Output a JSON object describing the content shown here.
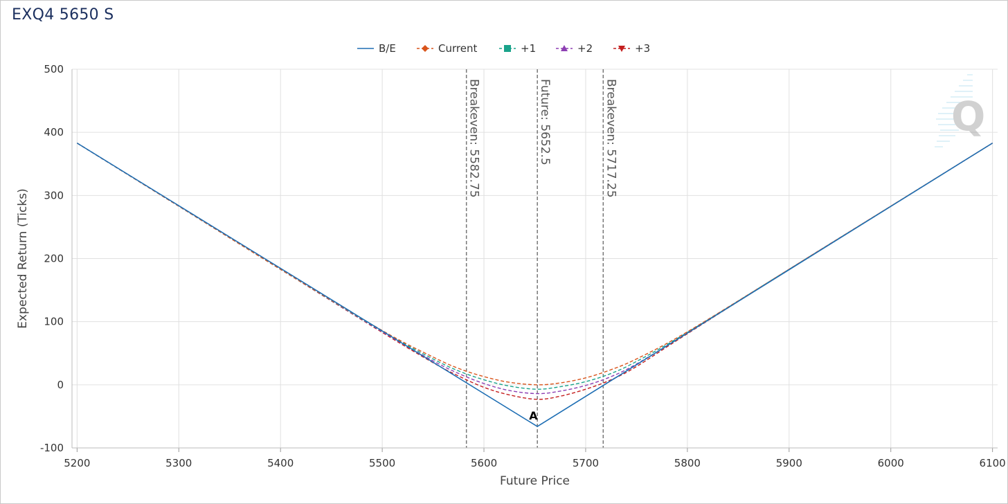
{
  "chart_data": {
    "type": "line",
    "title": "EXQ4 5650 S",
    "xlabel": "Future Price",
    "ylabel": "Expected Return (Ticks)",
    "xlim": [
      5195,
      6105
    ],
    "ylim": [
      -100,
      500
    ],
    "x_ticks": [
      5200,
      5300,
      5400,
      5500,
      5600,
      5700,
      5800,
      5900,
      6000,
      6100
    ],
    "y_ticks": [
      -100,
      0,
      100,
      200,
      300,
      400,
      500
    ],
    "grid": true,
    "legend_position": "top-center",
    "series": [
      {
        "name": "B/E",
        "color": "#1f6fb4",
        "dash": false,
        "marker": "none",
        "x": [
          5200,
          5652.5,
          6100
        ],
        "y": [
          383,
          -66,
          383
        ]
      },
      {
        "name": "Current",
        "color": "#d9541b",
        "dash": true,
        "marker": "diamond",
        "x": [
          5200,
          5300,
          5400,
          5500,
          5550,
          5575,
          5600,
          5625,
          5652.5,
          5675,
          5700,
          5725,
          5750,
          5800,
          5900,
          6000,
          6100
        ],
        "y": [
          383,
          283,
          183,
          86,
          44,
          26,
          13,
          4,
          0,
          3,
          11,
          24,
          41,
          84,
          183,
          283,
          383
        ]
      },
      {
        "name": "+1",
        "color": "#1aa38b",
        "dash": true,
        "marker": "square",
        "x": [
          5200,
          5300,
          5400,
          5500,
          5550,
          5575,
          5600,
          5625,
          5652.5,
          5675,
          5700,
          5725,
          5750,
          5800,
          5900,
          6000,
          6100
        ],
        "y": [
          383,
          283,
          183,
          85,
          41,
          22,
          8,
          -2,
          -7,
          -3,
          5,
          18,
          37,
          83,
          183,
          283,
          383
        ]
      },
      {
        "name": "+2",
        "color": "#8d3fb3",
        "dash": true,
        "marker": "triangle",
        "x": [
          5200,
          5300,
          5400,
          5500,
          5550,
          5575,
          5600,
          5625,
          5652.5,
          5675,
          5700,
          5725,
          5750,
          5800,
          5900,
          6000,
          6100
        ],
        "y": [
          383,
          283,
          183,
          84,
          38,
          18,
          2,
          -9,
          -14,
          -10,
          -1,
          13,
          33,
          82,
          183,
          283,
          383
        ]
      },
      {
        "name": "+3",
        "color": "#c41e1e",
        "dash": true,
        "marker": "triangle-down",
        "x": [
          5200,
          5300,
          5400,
          5500,
          5550,
          5575,
          5600,
          5625,
          5652.5,
          5675,
          5700,
          5725,
          5750,
          5800,
          5900,
          6000,
          6100
        ],
        "y": [
          383,
          283,
          183,
          83,
          35,
          14,
          -4,
          -16,
          -23,
          -18,
          -7,
          8,
          29,
          81,
          183,
          283,
          383
        ]
      }
    ],
    "plot_lines": [
      {
        "value": 5582.75,
        "label": "Breakeven: 5582.75"
      },
      {
        "value": 5652.5,
        "label": "Future: 5652.5"
      },
      {
        "value": 5717.25,
        "label": "Breakeven: 5717.25"
      }
    ],
    "annotations": [
      {
        "text": "A",
        "x": 5650,
        "y": -66
      }
    ]
  }
}
